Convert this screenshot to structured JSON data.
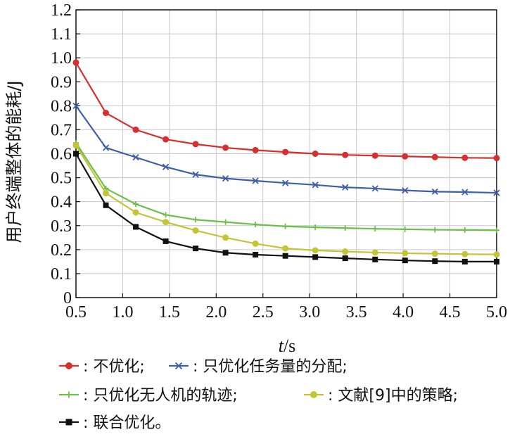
{
  "chart_data": {
    "type": "line",
    "xlabel": "t/s",
    "ylabel": "用户终端整体的能耗/J",
    "xlim": [
      0.5,
      5.0
    ],
    "ylim": [
      0,
      1.2
    ],
    "xticks": [
      "0.5",
      "1.0",
      "1.5",
      "2.0",
      "2.5",
      "3.0",
      "3.5",
      "4.0",
      "4.5",
      "5.0"
    ],
    "yticks": [
      "0",
      "0.1",
      "0.2",
      "0.3",
      "0.4",
      "0.5",
      "0.6",
      "0.7",
      "0.8",
      "0.9",
      "1.0",
      "1.1",
      "1.2"
    ],
    "grid": true,
    "legend_position": "bottom",
    "x": [
      0.5,
      0.82,
      1.14,
      1.46,
      1.78,
      2.1,
      2.42,
      2.74,
      3.06,
      3.38,
      3.7,
      4.02,
      4.34,
      4.66,
      5.0
    ],
    "series": [
      {
        "name": "不优化;",
        "color": "#d62f2f",
        "marker": "circle",
        "values": [
          0.98,
          0.77,
          0.7,
          0.66,
          0.64,
          0.625,
          0.615,
          0.607,
          0.6,
          0.595,
          0.592,
          0.589,
          0.586,
          0.583,
          0.582
        ]
      },
      {
        "name": "只优化任务量的分配;",
        "color": "#3d5fa8",
        "marker": "x",
        "values": [
          0.8,
          0.625,
          0.585,
          0.545,
          0.513,
          0.497,
          0.487,
          0.478,
          0.47,
          0.46,
          0.455,
          0.447,
          0.442,
          0.44,
          0.437
        ]
      },
      {
        "name": "只优化无人机的轨迹;",
        "color": "#6cc04a",
        "marker": "plus",
        "values": [
          0.645,
          0.455,
          0.39,
          0.345,
          0.325,
          0.315,
          0.305,
          0.297,
          0.293,
          0.29,
          0.287,
          0.285,
          0.283,
          0.282,
          0.281
        ]
      },
      {
        "name": "文献[9]中的策略;",
        "color": "#c4c436",
        "marker": "circle",
        "values": [
          0.635,
          0.435,
          0.355,
          0.315,
          0.28,
          0.25,
          0.225,
          0.205,
          0.197,
          0.192,
          0.188,
          0.185,
          0.183,
          0.181,
          0.18
        ]
      },
      {
        "name": "联合优化。",
        "color": "#111111",
        "marker": "square",
        "values": [
          0.6,
          0.385,
          0.295,
          0.235,
          0.205,
          0.187,
          0.179,
          0.174,
          0.169,
          0.164,
          0.159,
          0.155,
          0.152,
          0.15,
          0.15
        ]
      }
    ],
    "legend_separator": ": "
  }
}
